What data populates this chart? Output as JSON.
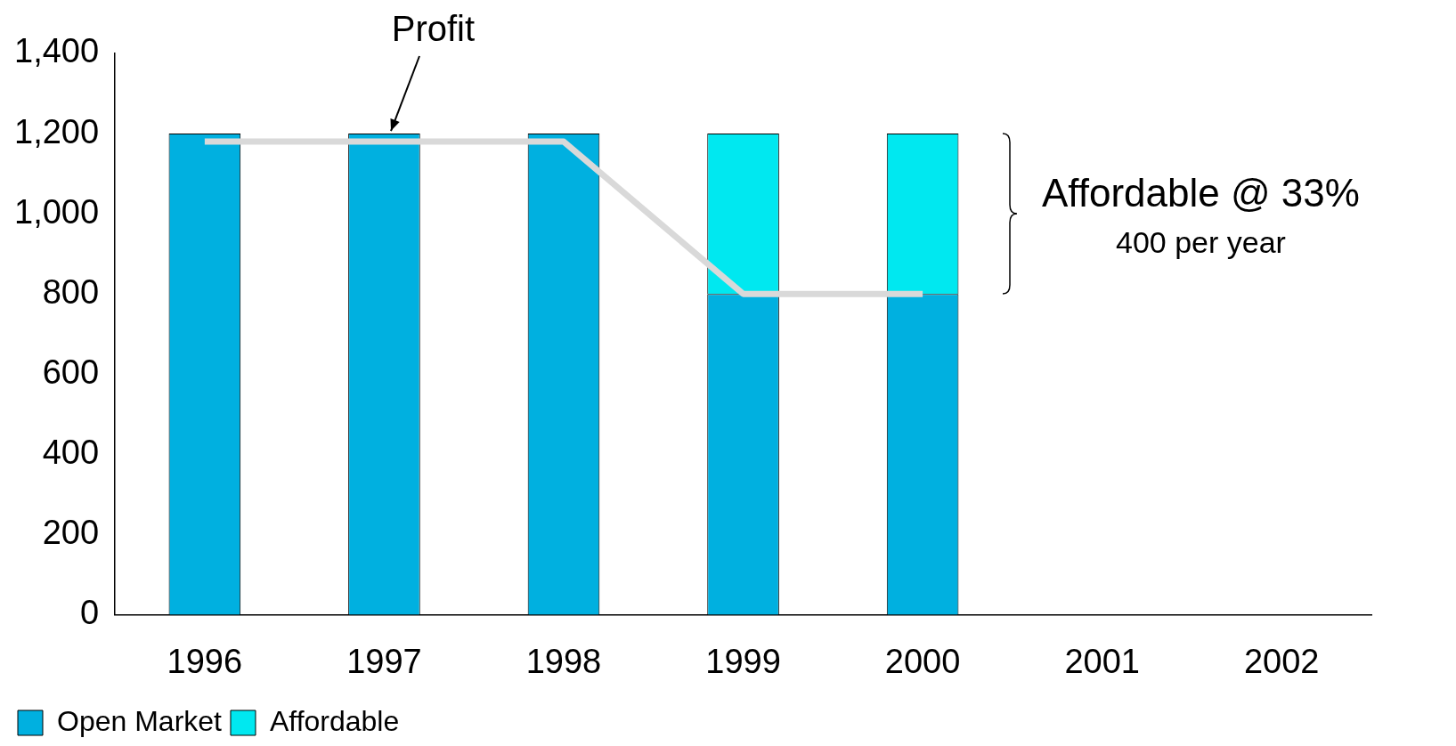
{
  "chart_data": {
    "type": "bar",
    "stacked": true,
    "categories": [
      "1996",
      "1997",
      "1998",
      "1999",
      "2000",
      "2001",
      "2002"
    ],
    "series": [
      {
        "name": "Open Market",
        "color": "#00b0e0",
        "values": [
          1200,
          1200,
          1200,
          800,
          800,
          null,
          null
        ]
      },
      {
        "name": "Affordable",
        "color": "#00e8f0",
        "values": [
          0,
          0,
          0,
          400,
          400,
          null,
          null
        ]
      },
      {
        "type": "line",
        "color": "#d9d9d9",
        "values": [
          1180,
          1180,
          1180,
          800,
          800,
          null,
          null
        ]
      }
    ],
    "ylim": [
      0,
      1400
    ],
    "yticks": [
      0,
      200,
      400,
      600,
      800,
      {
        "value": 1000,
        "label": "1,000"
      },
      {
        "value": 1200,
        "label": "1,200"
      },
      {
        "value": 1400,
        "label": "1,400"
      }
    ],
    "grid": false,
    "legend": "bottom left",
    "annotations": [
      {
        "text": "Profit",
        "x": "1997",
        "y": 1180
      },
      "Affordable @ 33%",
      "400 per year"
    ]
  }
}
